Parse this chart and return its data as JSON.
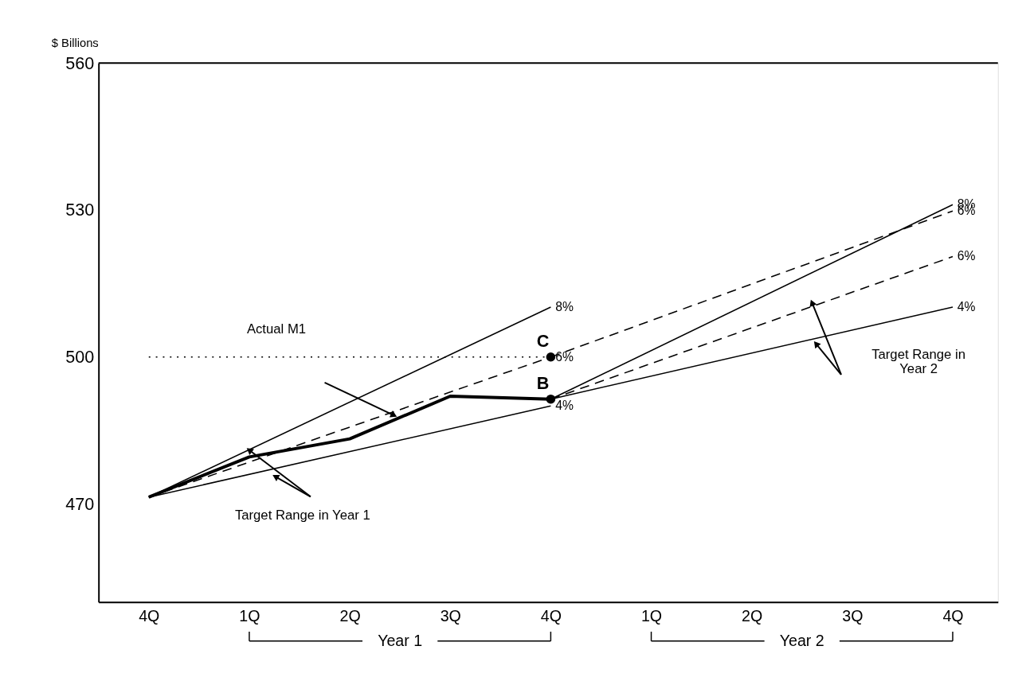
{
  "chart_data": {
    "type": "line",
    "ylabel": "$ Billions",
    "categories": [
      "4Q",
      "1Q",
      "2Q",
      "3Q",
      "4Q",
      "1Q",
      "2Q",
      "3Q",
      "4Q"
    ],
    "ylim": [
      450,
      560
    ],
    "yticks": [
      470,
      500,
      530,
      560
    ],
    "grid": false,
    "series": [
      {
        "color": "#000000",
        "values": [
          471.4,
          479.6,
          483.3,
          492.0,
          491.4,
          null,
          null,
          null,
          null
        ]
      },
      {
        "name": "8%",
        "color": "#000000",
        "values": [
          471.4,
          null,
          null,
          null,
          510.2,
          null,
          null,
          null,
          null
        ]
      },
      {
        "name": "6%",
        "color": "#000000",
        "line_style": "dashed",
        "values": [
          471.4,
          null,
          null,
          null,
          500,
          null,
          null,
          null,
          null
        ]
      },
      {
        "name": "6%",
        "color": "#000000",
        "line_style": "dashed",
        "values": [
          null,
          null,
          null,
          null,
          500,
          null,
          null,
          null,
          529.8
        ]
      },
      {
        "name": "4%",
        "color": "#000000",
        "values": [
          471.4,
          null,
          null,
          null,
          490.0,
          null,
          null,
          null,
          null
        ]
      },
      {
        "name": "8%",
        "color": "#000000",
        "values": [
          null,
          null,
          null,
          null,
          491.4,
          null,
          null,
          null,
          531.1
        ]
      },
      {
        "name": "6%",
        "color": "#000000",
        "line_style": "dashed",
        "values": [
          null,
          null,
          null,
          null,
          491.4,
          null,
          null,
          null,
          520.5
        ]
      },
      {
        "name": "4%",
        "color": "#000000",
        "values": [
          null,
          null,
          null,
          null,
          491.4,
          null,
          null,
          null,
          510.2
        ]
      },
      {
        "color": "#000000",
        "line_style": "dotted",
        "values": [
          500,
          null,
          null,
          null,
          500,
          null,
          null,
          null,
          null
        ]
      },
      {
        "type": "scatter",
        "name": "C",
        "color": "#000000",
        "marker": "circle",
        "values": [
          null,
          null,
          null,
          null,
          500,
          null,
          null,
          null,
          null
        ]
      },
      {
        "type": "scatter",
        "name": "B",
        "color": "#000000",
        "marker": "circle",
        "values": [
          null,
          null,
          null,
          null,
          491.4,
          null,
          null,
          null,
          null
        ]
      }
    ],
    "annotations": [
      "Actual M1",
      {
        "text": "Target Range in Year 1",
        "x": "1Q",
        "y": 481
      },
      "Target Range in\nYear 2",
      "Year 1",
      "Year 2"
    ]
  }
}
